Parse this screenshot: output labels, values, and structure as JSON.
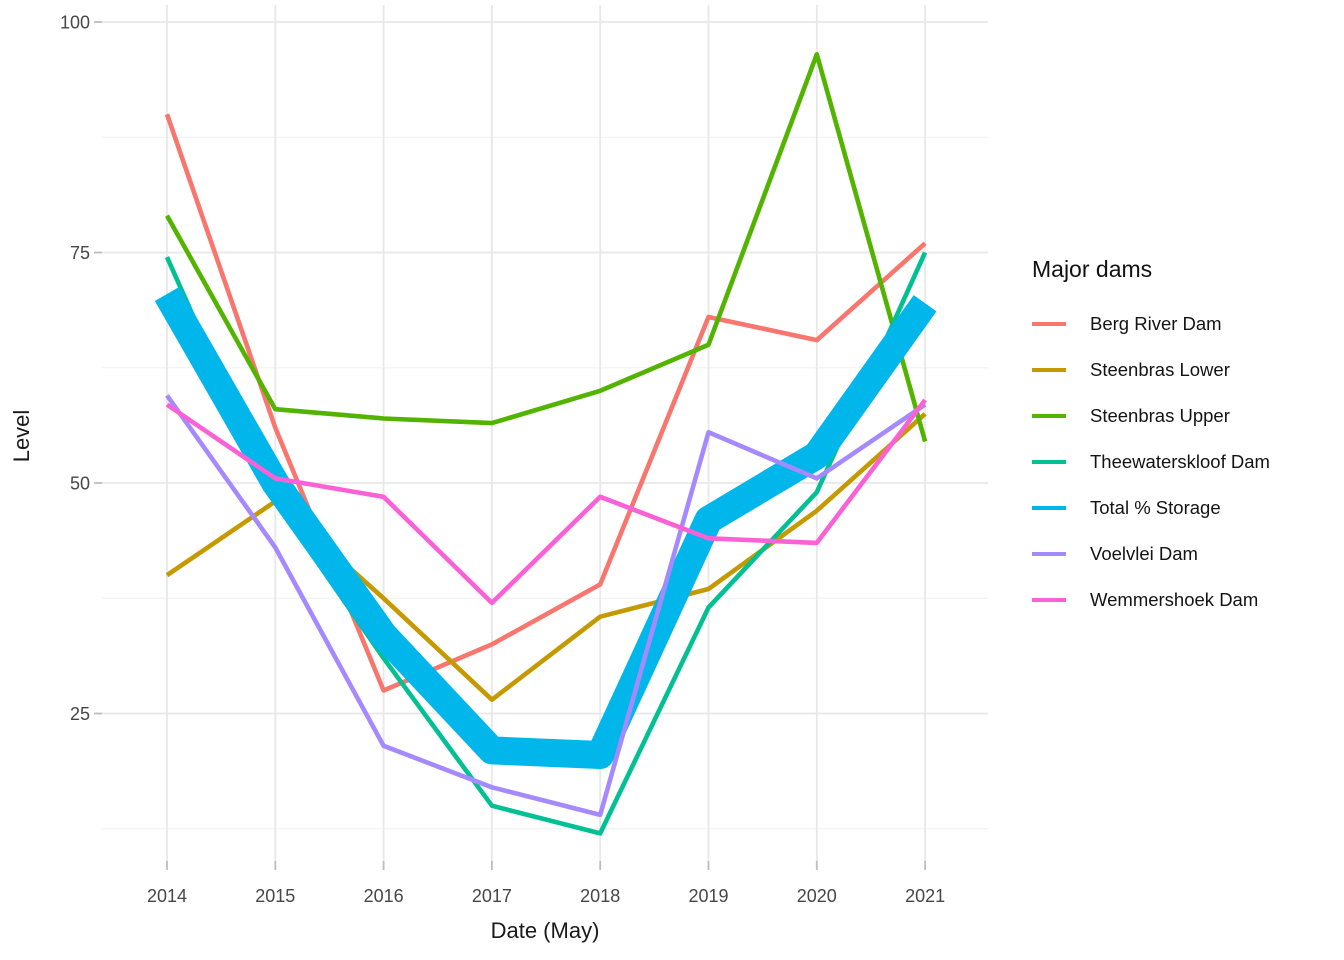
{
  "chart_data": {
    "type": "line",
    "title": "",
    "xlabel": "Date (May)",
    "ylabel": "Level",
    "legend_title": "Major dams",
    "legend_position": "right",
    "x": [
      2014,
      2015,
      2016,
      2017,
      2018,
      2019,
      2020,
      2021
    ],
    "y_ticks": [
      25,
      50,
      75,
      100
    ],
    "y_minor_ticks": [
      12.5,
      37.5,
      62.5,
      87.5
    ],
    "ylim": [
      9,
      102
    ],
    "grid": "major+minor horizontal, major vertical",
    "background": "#ffffff",
    "gridline_color": "#e8e8e8",
    "series": [
      {
        "name": "Berg River Dam",
        "color": "#F8766D",
        "line_width": "normal",
        "values": [
          90,
          56,
          27.5,
          32.5,
          39,
          68,
          65.5,
          76
        ]
      },
      {
        "name": "Steenbras Lower",
        "color": "#C49A00",
        "line_width": "normal",
        "values": [
          40,
          48,
          37.5,
          26.5,
          35.5,
          38.5,
          47,
          57.5
        ]
      },
      {
        "name": "Steenbras Upper",
        "color": "#53B400",
        "line_width": "normal",
        "values": [
          79,
          58,
          57,
          56.5,
          60,
          65,
          96.5,
          54.5
        ]
      },
      {
        "name": "Theewaterskloof Dam",
        "color": "#00C094",
        "line_width": "normal",
        "values": [
          74.5,
          48,
          31,
          15,
          12,
          36.5,
          49,
          75
        ]
      },
      {
        "name": "Total % Storage",
        "color": "#00B6EB",
        "line_width": "thick",
        "values": [
          70.5,
          50,
          33.5,
          21,
          20.5,
          46,
          53,
          69.5
        ]
      },
      {
        "name": "Voelvlei Dam",
        "color": "#A58AFF",
        "line_width": "normal",
        "values": [
          59.5,
          43,
          21.5,
          17,
          14,
          55.5,
          50.5,
          58.5
        ]
      },
      {
        "name": "Wemmershoek Dam",
        "color": "#FB61D7",
        "line_width": "normal",
        "values": [
          58.5,
          50.5,
          48.5,
          37,
          48.5,
          44,
          43.5,
          59
        ]
      }
    ]
  }
}
